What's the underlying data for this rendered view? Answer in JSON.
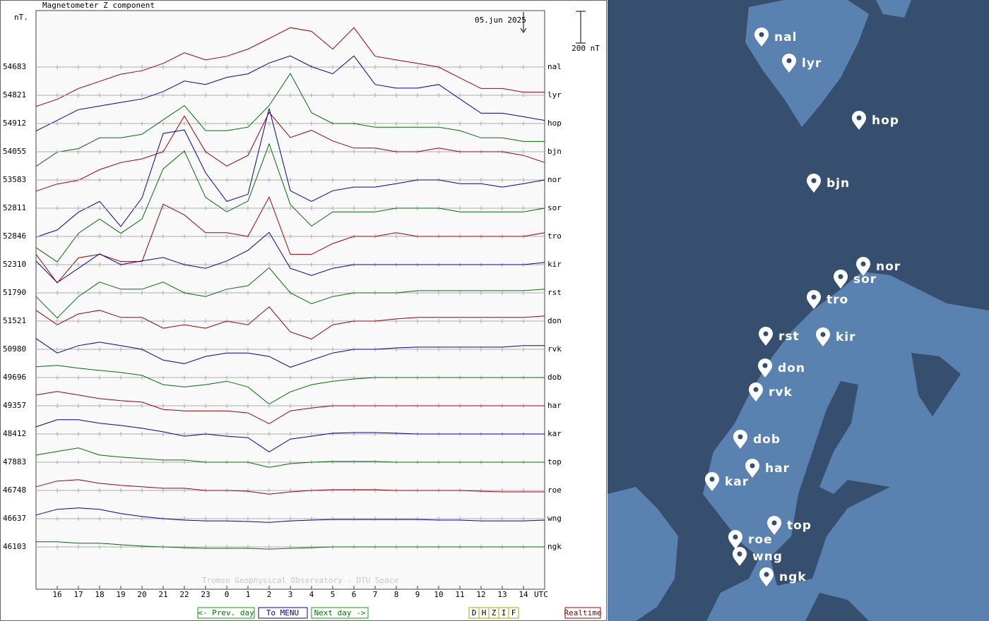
{
  "chart_data": {
    "type": "stacked-line",
    "title": "Magnetometer Z component",
    "y_unit": "nT.",
    "date": "05.jun 2025",
    "x_label": "UTC",
    "credit": "Tromso Geophysical Observatory - DTU Space",
    "scale_bar": {
      "value": 200,
      "label": "200 nT"
    },
    "xlim": [
      0,
      24
    ],
    "xticks": [
      {
        "value": 1,
        "label": "16"
      },
      {
        "value": 2,
        "label": "17"
      },
      {
        "value": 3,
        "label": "18"
      },
      {
        "value": 4,
        "label": "19"
      },
      {
        "value": 5,
        "label": "20"
      },
      {
        "value": 6,
        "label": "21"
      },
      {
        "value": 7,
        "label": "22"
      },
      {
        "value": 8,
        "label": "23"
      },
      {
        "value": 9,
        "label": "0"
      },
      {
        "value": 10,
        "label": "1"
      },
      {
        "value": 11,
        "label": "2"
      },
      {
        "value": 12,
        "label": "3"
      },
      {
        "value": 13,
        "label": "4"
      },
      {
        "value": 14,
        "label": "5"
      },
      {
        "value": 15,
        "label": "6"
      },
      {
        "value": 16,
        "label": "7"
      },
      {
        "value": 17,
        "label": "8"
      },
      {
        "value": 18,
        "label": "9"
      },
      {
        "value": 19,
        "label": "10"
      },
      {
        "value": 20,
        "label": "11"
      },
      {
        "value": 21,
        "label": "12"
      },
      {
        "value": 22,
        "label": "13"
      },
      {
        "value": 23,
        "label": "14"
      }
    ],
    "x": [
      0,
      1,
      2,
      3,
      4,
      5,
      6,
      7,
      8,
      9,
      10,
      11,
      12,
      13,
      14,
      15,
      16,
      17,
      18,
      19,
      20,
      21,
      22,
      23,
      24
    ],
    "series": [
      {
        "name": "nal",
        "color": "#a00000",
        "baseline": 54683,
        "values": [
          -248,
          -203,
          -135,
          -90,
          -45,
          -23,
          23,
          90,
          45,
          68,
          113,
          180,
          248,
          225,
          113,
          248,
          68,
          45,
          23,
          0,
          -68,
          -135,
          -135,
          -158,
          -158
        ]
      },
      {
        "name": "lyr",
        "color": "#0000b0",
        "baseline": 54821,
        "values": [
          -225,
          -158,
          -90,
          -68,
          -45,
          -23,
          23,
          90,
          68,
          113,
          135,
          203,
          248,
          180,
          135,
          248,
          68,
          45,
          45,
          68,
          -23,
          -113,
          -113,
          -135,
          -158
        ]
      },
      {
        "name": "hop",
        "color": "#007000",
        "baseline": 54912,
        "values": [
          -270,
          -180,
          -158,
          -90,
          -90,
          -68,
          23,
          113,
          -45,
          -45,
          -23,
          113,
          315,
          68,
          0,
          0,
          -23,
          -23,
          -23,
          -23,
          -45,
          -90,
          -90,
          -113,
          -113
        ]
      },
      {
        "name": "bjn",
        "color": "#a00000",
        "baseline": 54055,
        "values": [
          -248,
          -203,
          -180,
          -113,
          -68,
          -45,
          0,
          225,
          0,
          -90,
          -23,
          248,
          90,
          135,
          68,
          23,
          23,
          0,
          0,
          23,
          0,
          0,
          0,
          -23,
          -68
        ]
      },
      {
        "name": "nor",
        "color": "#0000b0",
        "baseline": 53583,
        "values": [
          -360,
          -315,
          -203,
          -135,
          -293,
          -113,
          293,
          315,
          45,
          -135,
          -90,
          450,
          -68,
          -135,
          -68,
          -45,
          -45,
          -23,
          0,
          0,
          -23,
          -23,
          -45,
          -23,
          0
        ]
      },
      {
        "name": "sor",
        "color": "#007000",
        "baseline": 52811,
        "values": [
          -248,
          -338,
          -158,
          -68,
          -158,
          -68,
          248,
          360,
          68,
          -23,
          45,
          405,
          23,
          -113,
          -23,
          -23,
          -23,
          0,
          0,
          0,
          -23,
          -23,
          -23,
          -23,
          0
        ]
      },
      {
        "name": "tro",
        "color": "#a00000",
        "baseline": 52846,
        "values": [
          -113,
          -293,
          -135,
          -113,
          -158,
          -158,
          203,
          135,
          23,
          23,
          0,
          248,
          -113,
          -113,
          -45,
          0,
          0,
          23,
          0,
          0,
          0,
          0,
          0,
          0,
          23
        ]
      },
      {
        "name": "kir",
        "color": "#0000b0",
        "baseline": 52310,
        "values": [
          23,
          -113,
          -23,
          68,
          0,
          23,
          45,
          0,
          -23,
          23,
          90,
          203,
          -23,
          -68,
          -23,
          0,
          0,
          0,
          0,
          0,
          0,
          0,
          0,
          0,
          14
        ]
      },
      {
        "name": "rst",
        "color": "#007000",
        "baseline": 51790,
        "values": [
          -23,
          -158,
          -23,
          68,
          23,
          23,
          68,
          0,
          -23,
          23,
          45,
          158,
          0,
          -68,
          -23,
          0,
          0,
          0,
          14,
          14,
          14,
          14,
          14,
          14,
          23
        ]
      },
      {
        "name": "don",
        "color": "#a00000",
        "baseline": 51521,
        "values": [
          68,
          -23,
          45,
          68,
          23,
          23,
          -45,
          -23,
          -45,
          0,
          -23,
          90,
          -68,
          -113,
          -23,
          0,
          0,
          14,
          23,
          23,
          23,
          23,
          23,
          23,
          32
        ]
      },
      {
        "name": "rvk",
        "color": "#0000b0",
        "baseline": 50980,
        "values": [
          68,
          -23,
          23,
          45,
          23,
          0,
          -68,
          -90,
          -45,
          -23,
          -23,
          -45,
          -113,
          -68,
          -23,
          0,
          0,
          9,
          14,
          14,
          14,
          14,
          14,
          23,
          23
        ]
      },
      {
        "name": "dob",
        "color": "#007000",
        "baseline": 49696,
        "values": [
          68,
          77,
          59,
          45,
          32,
          14,
          -45,
          -59,
          -45,
          -23,
          -59,
          -167,
          -90,
          -45,
          -23,
          -9,
          0,
          0,
          0,
          0,
          0,
          0,
          0,
          0,
          0
        ]
      },
      {
        "name": "har",
        "color": "#a00000",
        "baseline": 49357,
        "values": [
          68,
          90,
          68,
          45,
          32,
          23,
          -23,
          -32,
          -32,
          -32,
          -45,
          -113,
          -32,
          -14,
          0,
          0,
          0,
          0,
          0,
          0,
          0,
          0,
          0,
          0,
          0
        ]
      },
      {
        "name": "kar",
        "color": "#0000b0",
        "baseline": 48412,
        "values": [
          45,
          90,
          90,
          68,
          54,
          36,
          14,
          -14,
          0,
          -14,
          -23,
          -113,
          -32,
          -14,
          5,
          9,
          9,
          5,
          0,
          0,
          0,
          0,
          0,
          0,
          0
        ]
      },
      {
        "name": "top",
        "color": "#007000",
        "baseline": 47883,
        "values": [
          45,
          68,
          90,
          45,
          32,
          23,
          14,
          14,
          0,
          0,
          0,
          -32,
          -9,
          0,
          5,
          5,
          5,
          0,
          0,
          0,
          0,
          0,
          0,
          0,
          0
        ]
      },
      {
        "name": "roe",
        "color": "#a00000",
        "baseline": 46748,
        "values": [
          23,
          59,
          68,
          45,
          32,
          23,
          14,
          14,
          0,
          0,
          -5,
          -23,
          -9,
          0,
          5,
          5,
          5,
          0,
          0,
          0,
          0,
          -5,
          -9,
          -9,
          -9
        ]
      },
      {
        "name": "wng",
        "color": "#0000b0",
        "baseline": 46637,
        "values": [
          23,
          59,
          68,
          59,
          32,
          14,
          0,
          -9,
          -14,
          -14,
          -18,
          -23,
          -14,
          -9,
          -5,
          -5,
          -5,
          -5,
          -5,
          -9,
          -9,
          -14,
          -14,
          -14,
          -9
        ]
      },
      {
        "name": "ngk",
        "color": "#007000",
        "baseline": 46103,
        "values": [
          32,
          32,
          23,
          23,
          14,
          5,
          0,
          -5,
          -9,
          -9,
          -9,
          -14,
          -9,
          -5,
          0,
          0,
          0,
          0,
          0,
          0,
          0,
          0,
          0,
          0,
          0
        ]
      }
    ]
  },
  "buttons": [
    "<- Prev. day",
    "To MENU",
    "Next day ->"
  ],
  "components": [
    "D",
    "H",
    "Z",
    "I",
    "F"
  ],
  "realtime": "Realtime",
  "map": {
    "stations": [
      "nal",
      "lyr",
      "hop",
      "bjn",
      "nor",
      "sor",
      "tro",
      "rst",
      "kir",
      "don",
      "rvk",
      "dob",
      "har",
      "kar",
      "top",
      "roe",
      "wng",
      "ngk"
    ]
  }
}
